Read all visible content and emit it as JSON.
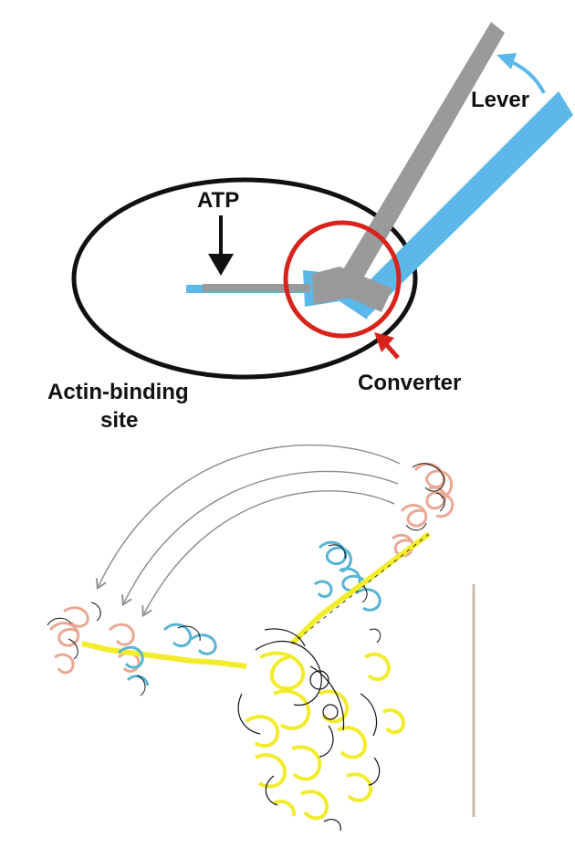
{
  "labels": {
    "lever": "Lever",
    "atp": "ATP",
    "converter": "Converter",
    "actin_line1": "Actin-binding",
    "actin_line2": "site"
  },
  "colors": {
    "outline": "#111111",
    "converter_circle": "#d8231c",
    "pre_stroke": "#5cb8e8",
    "post_stroke": "#9a9a9a",
    "helix_main": "#f2ec2c",
    "helix_blue": "#57b4d6",
    "helix_pink": "#f0b7a3",
    "arc_line": "#8a8a8a",
    "scale_bar": "#c9bcaa"
  },
  "structure": {
    "description_icons": [
      "myosin-ribbon-structure-icon",
      "lever-swing-arc-icon"
    ]
  }
}
